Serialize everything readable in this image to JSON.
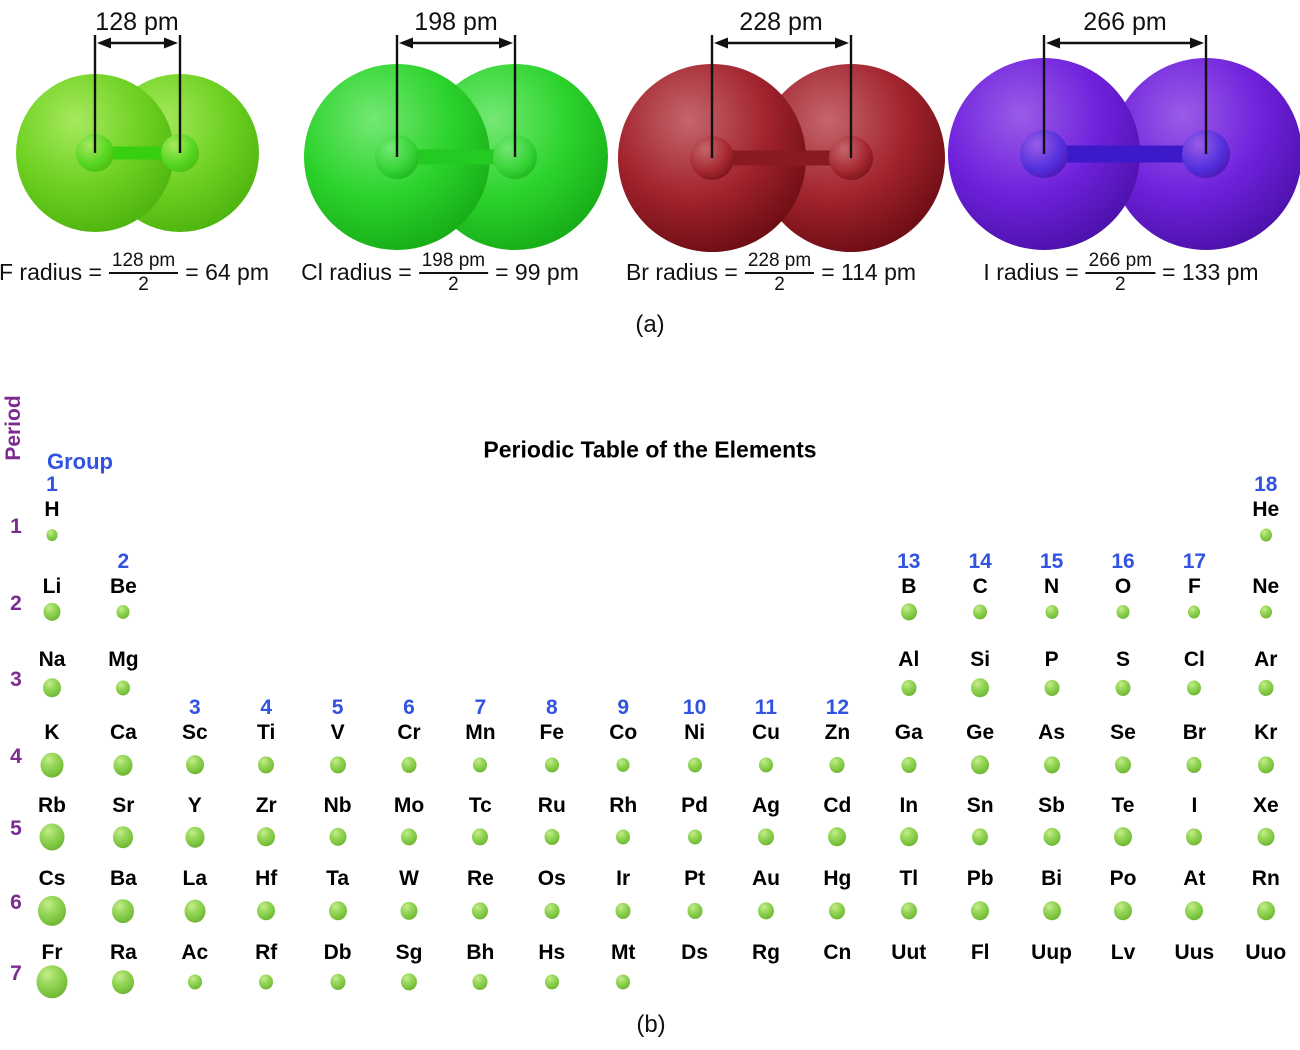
{
  "figure": {
    "part_a_label": "(a)",
    "part_b_label": "(b)"
  },
  "molecules": [
    {
      "element": "F",
      "bond_length_label": "128 pm",
      "radius_formula": {
        "prefix": "F radius =",
        "numerator": "128 pm",
        "denominator": "2",
        "result": "= 64 pm"
      },
      "colors": {
        "highlight": "#a6e95e",
        "body": "#6fd122",
        "edge": "#4cb30e",
        "bond": "#38cf11",
        "nub": "#54d61f"
      }
    },
    {
      "element": "Cl",
      "bond_length_label": "198 pm",
      "radius_formula": {
        "prefix": "Cl radius =",
        "numerator": "198 pm",
        "denominator": "2",
        "result": "= 99 pm"
      },
      "colors": {
        "highlight": "#74e874",
        "body": "#2cd32c",
        "edge": "#16ab16",
        "bond": "#22ca22",
        "nub": "#36d336"
      }
    },
    {
      "element": "Br",
      "bond_length_label": "228 pm",
      "radius_formula": {
        "prefix": "Br radius =",
        "numerator": "228 pm",
        "denominator": "2",
        "result": "= 114 pm"
      },
      "colors": {
        "highlight": "#c4666d",
        "body": "#a2232d",
        "edge": "#6a0c14",
        "bond": "#8a1a22",
        "nub": "#a62830"
      }
    },
    {
      "element": "I",
      "bond_length_label": "266 pm",
      "radius_formula": {
        "prefix": "I radius =",
        "numerator": "266 pm",
        "denominator": "2",
        "result": "= 133 pm"
      },
      "colors": {
        "highlight": "#9a5ce7",
        "body": "#7021dc",
        "edge": "#4a10a8",
        "bond": "#3d1ac9",
        "nub": "#5330dd"
      }
    }
  ],
  "periodic_table": {
    "title": "Periodic Table of the Elements",
    "group_axis_label": "Group",
    "period_axis_label": "Period",
    "group_numbers": [
      "1",
      "2",
      "3",
      "4",
      "5",
      "6",
      "7",
      "8",
      "9",
      "10",
      "11",
      "12",
      "13",
      "14",
      "15",
      "16",
      "17",
      "18"
    ],
    "colors": {
      "group_number_blue": "#3253e2",
      "period_number_purple": "#7c2b90",
      "sphere_highlight": "#c6ec8c",
      "sphere_light": "#9ad95e",
      "sphere_body": "#7cc43e",
      "sphere_edge": "#5f9e2c"
    },
    "periods": [
      {
        "n": "1",
        "elements": [
          {
            "s": "H",
            "g": 1,
            "r": 5.5
          },
          {
            "s": "He",
            "g": 18,
            "r": 6
          }
        ]
      },
      {
        "n": "2",
        "elements": [
          {
            "s": "Li",
            "g": 1,
            "r": 8.5
          },
          {
            "s": "Be",
            "g": 2,
            "r": 6.5
          },
          {
            "s": "B",
            "g": 13,
            "r": 8
          },
          {
            "s": "C",
            "g": 14,
            "r": 7
          },
          {
            "s": "N",
            "g": 15,
            "r": 6.5
          },
          {
            "s": "O",
            "g": 16,
            "r": 6.5
          },
          {
            "s": "F",
            "g": 17,
            "r": 6
          },
          {
            "s": "Ne",
            "g": 18,
            "r": 6
          }
        ]
      },
      {
        "n": "3",
        "elements": [
          {
            "s": "Na",
            "g": 1,
            "r": 9
          },
          {
            "s": "Mg",
            "g": 2,
            "r": 7
          },
          {
            "s": "Al",
            "g": 13,
            "r": 7.5
          },
          {
            "s": "Si",
            "g": 14,
            "r": 9
          },
          {
            "s": "P",
            "g": 15,
            "r": 7.5
          },
          {
            "s": "S",
            "g": 16,
            "r": 7.5
          },
          {
            "s": "Cl",
            "g": 17,
            "r": 7
          },
          {
            "s": "Ar",
            "g": 18,
            "r": 7.5
          }
        ]
      },
      {
        "n": "4",
        "elements": [
          {
            "s": "K",
            "g": 1,
            "r": 11.5
          },
          {
            "s": "Ca",
            "g": 2,
            "r": 9.5
          },
          {
            "s": "Sc",
            "g": 3,
            "r": 9
          },
          {
            "s": "Ti",
            "g": 4,
            "r": 8
          },
          {
            "s": "V",
            "g": 5,
            "r": 8
          },
          {
            "s": "Cr",
            "g": 6,
            "r": 7.5
          },
          {
            "s": "Mn",
            "g": 7,
            "r": 7
          },
          {
            "s": "Fe",
            "g": 8,
            "r": 7
          },
          {
            "s": "Co",
            "g": 9,
            "r": 6.5
          },
          {
            "s": "Ni",
            "g": 10,
            "r": 7
          },
          {
            "s": "Cu",
            "g": 11,
            "r": 7
          },
          {
            "s": "Zn",
            "g": 12,
            "r": 7.5
          },
          {
            "s": "Ga",
            "g": 13,
            "r": 7.5
          },
          {
            "s": "Ge",
            "g": 14,
            "r": 9
          },
          {
            "s": "As",
            "g": 15,
            "r": 8
          },
          {
            "s": "Se",
            "g": 16,
            "r": 8
          },
          {
            "s": "Br",
            "g": 17,
            "r": 7.5
          },
          {
            "s": "Kr",
            "g": 18,
            "r": 8
          }
        ]
      },
      {
        "n": "5",
        "elements": [
          {
            "s": "Rb",
            "g": 1,
            "r": 12.5
          },
          {
            "s": "Sr",
            "g": 2,
            "r": 10
          },
          {
            "s": "Y",
            "g": 3,
            "r": 9.5
          },
          {
            "s": "Zr",
            "g": 4,
            "r": 9
          },
          {
            "s": "Nb",
            "g": 5,
            "r": 8.5
          },
          {
            "s": "Mo",
            "g": 6,
            "r": 8
          },
          {
            "s": "Tc",
            "g": 7,
            "r": 8
          },
          {
            "s": "Ru",
            "g": 8,
            "r": 7.5
          },
          {
            "s": "Rh",
            "g": 9,
            "r": 7
          },
          {
            "s": "Pd",
            "g": 10,
            "r": 7
          },
          {
            "s": "Ag",
            "g": 11,
            "r": 8
          },
          {
            "s": "Cd",
            "g": 12,
            "r": 9
          },
          {
            "s": "In",
            "g": 13,
            "r": 9
          },
          {
            "s": "Sn",
            "g": 14,
            "r": 8
          },
          {
            "s": "Sb",
            "g": 15,
            "r": 8.5
          },
          {
            "s": "Te",
            "g": 16,
            "r": 9
          },
          {
            "s": "I",
            "g": 17,
            "r": 8
          },
          {
            "s": "Xe",
            "g": 18,
            "r": 8.5
          }
        ]
      },
      {
        "n": "6",
        "elements": [
          {
            "s": "Cs",
            "g": 1,
            "r": 14
          },
          {
            "s": "Ba",
            "g": 2,
            "r": 11
          },
          {
            "s": "La",
            "g": 3,
            "r": 10.5
          },
          {
            "s": "Hf",
            "g": 4,
            "r": 9
          },
          {
            "s": "Ta",
            "g": 5,
            "r": 9
          },
          {
            "s": "W",
            "g": 6,
            "r": 8.5
          },
          {
            "s": "Re",
            "g": 7,
            "r": 8
          },
          {
            "s": "Os",
            "g": 8,
            "r": 7.5
          },
          {
            "s": "Ir",
            "g": 9,
            "r": 7.5
          },
          {
            "s": "Pt",
            "g": 10,
            "r": 7.5
          },
          {
            "s": "Au",
            "g": 11,
            "r": 8
          },
          {
            "s": "Hg",
            "g": 12,
            "r": 8
          },
          {
            "s": "Tl",
            "g": 13,
            "r": 8
          },
          {
            "s": "Pb",
            "g": 14,
            "r": 9
          },
          {
            "s": "Bi",
            "g": 15,
            "r": 9
          },
          {
            "s": "Po",
            "g": 16,
            "r": 9
          },
          {
            "s": "At",
            "g": 17,
            "r": 9
          },
          {
            "s": "Rn",
            "g": 18,
            "r": 9
          }
        ]
      },
      {
        "n": "7",
        "elements": [
          {
            "s": "Fr",
            "g": 1,
            "r": 15.5
          },
          {
            "s": "Ra",
            "g": 2,
            "r": 11
          },
          {
            "s": "Ac",
            "g": 3,
            "r": 7
          },
          {
            "s": "Rf",
            "g": 4,
            "r": 7
          },
          {
            "s": "Db",
            "g": 5,
            "r": 7.5
          },
          {
            "s": "Sg",
            "g": 6,
            "r": 8
          },
          {
            "s": "Bh",
            "g": 7,
            "r": 7.5
          },
          {
            "s": "Hs",
            "g": 8,
            "r": 7
          },
          {
            "s": "Mt",
            "g": 9,
            "r": 7
          },
          {
            "s": "Ds",
            "g": 10,
            "r": 0
          },
          {
            "s": "Rg",
            "g": 11,
            "r": 0
          },
          {
            "s": "Cn",
            "g": 12,
            "r": 0
          },
          {
            "s": "Uut",
            "g": 13,
            "r": 0
          },
          {
            "s": "Fl",
            "g": 14,
            "r": 0
          },
          {
            "s": "Uup",
            "g": 15,
            "r": 0
          },
          {
            "s": "Lv",
            "g": 16,
            "r": 0
          },
          {
            "s": "Uus",
            "g": 17,
            "r": 0
          },
          {
            "s": "Uuo",
            "g": 18,
            "r": 0
          }
        ]
      }
    ]
  }
}
